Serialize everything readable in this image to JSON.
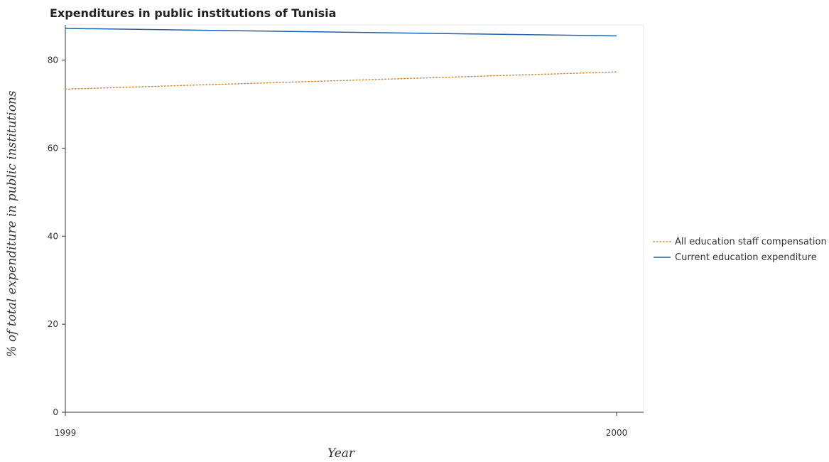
{
  "chart_data": {
    "type": "line",
    "title": "Expenditures in public institutions of Tunisia",
    "xlabel": "Year",
    "ylabel": "% of total expenditure in public institutions",
    "x": [
      "1999",
      "2000"
    ],
    "ylim": [
      0,
      88
    ],
    "yticks": [
      0,
      20,
      40,
      60,
      80
    ],
    "grid": false,
    "legend_position": "right",
    "series": [
      {
        "name": "All education staff compensation",
        "values": [
          73.4,
          77.3
        ],
        "color": "#d2883a",
        "style": "dotted"
      },
      {
        "name": "Current education expenditure",
        "values": [
          87.2,
          85.5
        ],
        "color": "#1f5fb0",
        "style": "solid"
      }
    ]
  }
}
